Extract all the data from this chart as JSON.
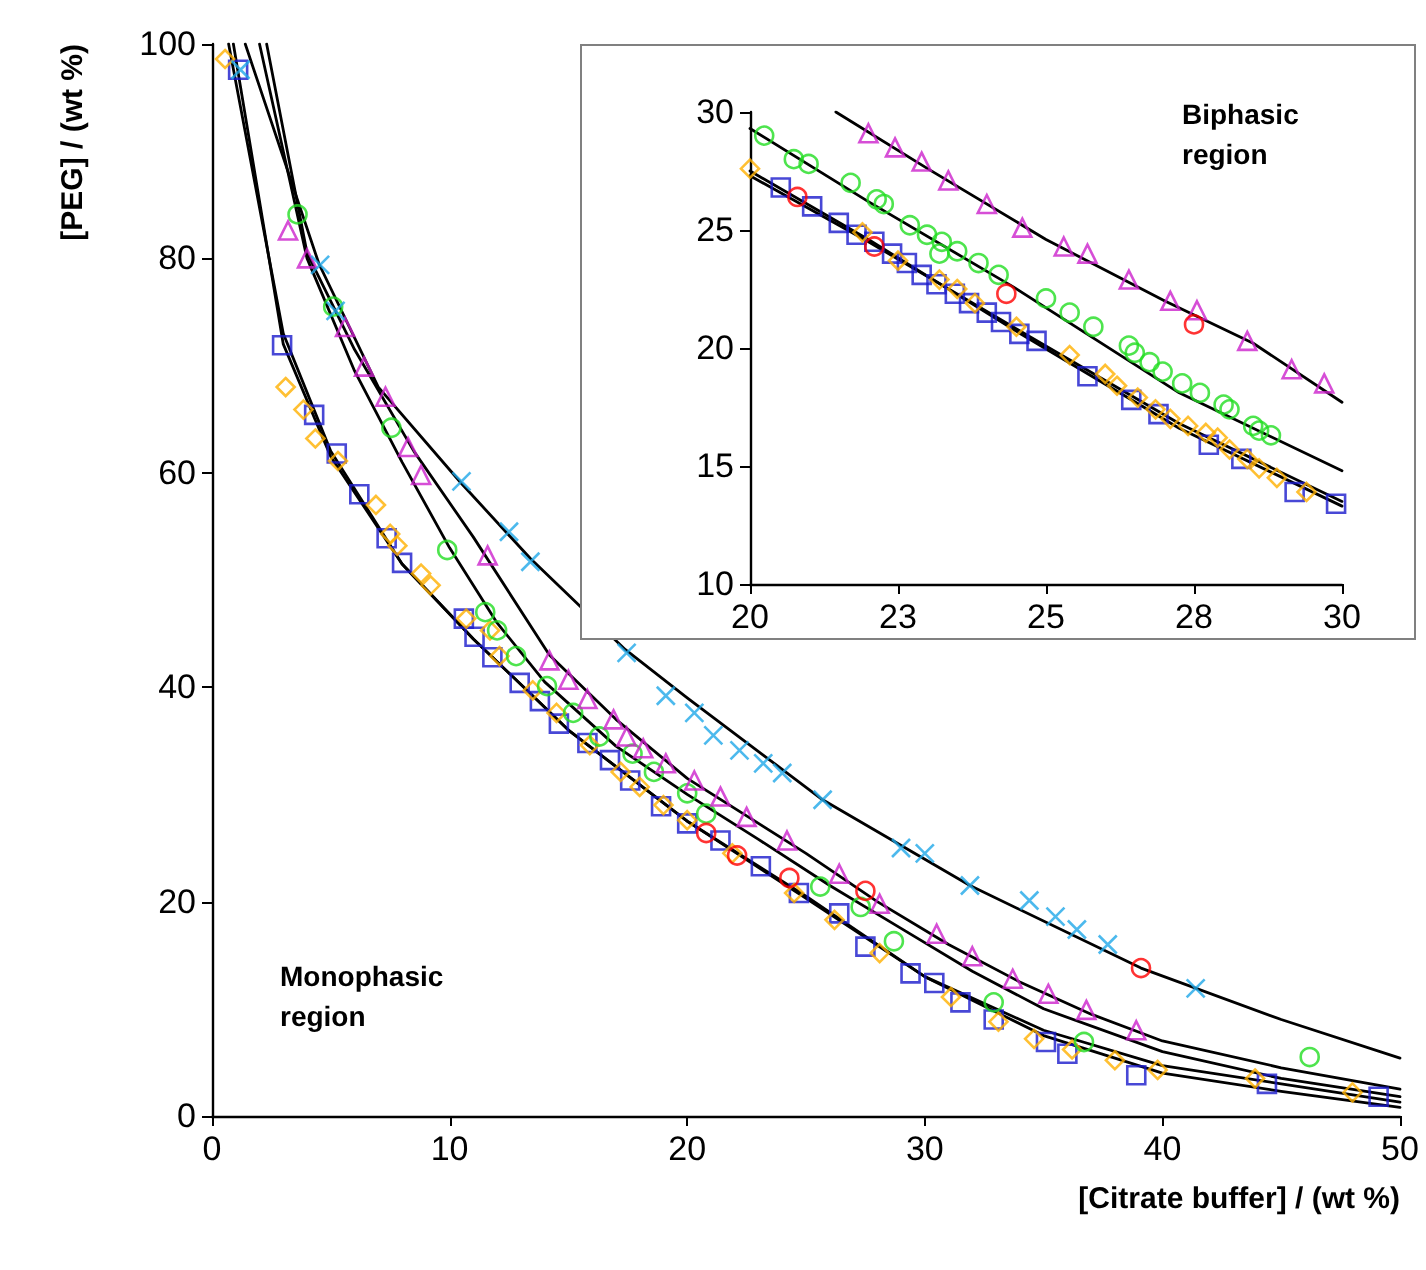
{
  "chart_data": [
    {
      "type": "scatter",
      "xlabel": "[Citrate buffer] / (wt %)",
      "ylabel": "[PEG] / (wt %)",
      "xlim": [
        0,
        50
      ],
      "ylim": [
        0,
        100
      ],
      "xticks": [
        0,
        10,
        20,
        30,
        40,
        50
      ],
      "yticks": [
        0,
        20,
        40,
        60,
        80,
        100
      ],
      "annotations": [
        "Monophasic region"
      ],
      "series": [
        {
          "type": "scatter",
          "marker": "square",
          "color": "#1a1acc",
          "x": [
            1.1,
            2.95,
            4.3,
            5.25,
            6.2,
            7.35,
            8.0,
            10.6,
            11.05,
            11.8,
            12.95,
            13.8,
            14.6,
            15.8,
            16.75,
            17.6,
            18.9,
            20.0,
            21.4,
            23.1,
            24.7,
            26.4,
            27.5,
            29.4,
            30.4,
            31.5,
            32.9,
            35.1,
            36.0,
            38.9,
            44.4,
            49.1
          ],
          "values": [
            97.6,
            71.9,
            65.4,
            61.8,
            58.0,
            53.9,
            51.6,
            46.4,
            44.7,
            42.8,
            40.4,
            38.7,
            36.6,
            34.8,
            33.2,
            31.3,
            28.9,
            27.3,
            25.7,
            23.3,
            20.8,
            18.9,
            15.8,
            13.3,
            12.4,
            10.6,
            9.0,
            6.9,
            5.8,
            3.8,
            3.0,
            1.8
          ]
        },
        {
          "type": "scatter",
          "marker": "diamond",
          "color": "#ffb000",
          "x": [
            0.55,
            3.1,
            3.85,
            4.35,
            5.3,
            6.9,
            7.5,
            7.8,
            8.8,
            9.2,
            10.7,
            11.7,
            12.1,
            13.5,
            14.5,
            15.9,
            17.2,
            18.0,
            19.0,
            20.0,
            21.9,
            24.5,
            26.2,
            28.1,
            31.1,
            33.1,
            34.6,
            36.2,
            38.0,
            39.8,
            43.9,
            48.0
          ],
          "values": [
            98.6,
            68.0,
            65.9,
            63.2,
            61.1,
            57.0,
            54.3,
            53.2,
            50.6,
            49.5,
            46.4,
            45.3,
            42.9,
            39.7,
            37.6,
            34.6,
            32.1,
            30.7,
            29.0,
            27.6,
            24.5,
            20.8,
            18.3,
            15.2,
            11.1,
            8.8,
            7.2,
            6.2,
            5.2,
            4.3,
            3.5,
            2.2
          ]
        },
        {
          "type": "scatter",
          "marker": "circle",
          "color": "#22dd22",
          "x": [
            3.6,
            5.1,
            7.55,
            9.9,
            11.5,
            12.0,
            12.8,
            14.1,
            15.2,
            16.3,
            17.7,
            18.6,
            20.0,
            20.8,
            25.6,
            27.3,
            28.7,
            32.9,
            36.7,
            46.2
          ],
          "values": [
            84.1,
            75.5,
            64.2,
            52.8,
            47.0,
            45.3,
            42.9,
            40.1,
            37.6,
            35.4,
            33.8,
            32.1,
            30.1,
            28.2,
            21.4,
            19.5,
            16.3,
            10.6,
            6.9,
            5.5
          ]
        },
        {
          "type": "scatter",
          "marker": "triangle",
          "color": "#cc22cc",
          "x": [
            3.2,
            4.0,
            5.6,
            6.4,
            7.3,
            8.25,
            8.8,
            11.6,
            14.2,
            15.0,
            15.8,
            16.9,
            17.45,
            18.15,
            19.1,
            20.3,
            21.4,
            22.5,
            24.2,
            26.4,
            28.1,
            30.5,
            32.0,
            33.7,
            35.2,
            36.8,
            38.9
          ],
          "values": [
            82.6,
            80.0,
            73.6,
            69.9,
            67.1,
            62.4,
            59.8,
            52.3,
            42.5,
            40.7,
            38.9,
            37.0,
            35.4,
            34.3,
            32.9,
            31.3,
            29.8,
            27.9,
            25.7,
            22.6,
            19.8,
            17.0,
            14.9,
            12.8,
            11.4,
            9.9,
            8.0
          ]
        },
        {
          "type": "scatter",
          "marker": "cross",
          "color": "#1fa8e8",
          "x": [
            1.2,
            4.55,
            5.2,
            10.5,
            12.5,
            13.4,
            17.45,
            19.1,
            20.3,
            21.1,
            22.2,
            23.2,
            24.0,
            25.7,
            29.0,
            30.0,
            31.9,
            34.4,
            35.5,
            36.4,
            37.7,
            41.4
          ],
          "values": [
            97.6,
            79.4,
            75.1,
            59.2,
            54.5,
            51.7,
            43.2,
            39.2,
            37.6,
            35.5,
            34.1,
            32.9,
            32.0,
            29.5,
            25.0,
            24.5,
            21.5,
            20.1,
            18.6,
            17.4,
            16.0,
            11.9
          ]
        },
        {
          "marker": "circle",
          "color": "#ff0000",
          "x": [
            20.8,
            22.1,
            24.3,
            27.5,
            39.1
          ],
          "values": [
            26.4,
            24.3,
            22.2,
            21.0,
            13.8
          ]
        },
        {
          "type": "line",
          "marker": "none",
          "color": "#000000",
          "x": [
            0.7,
            3,
            5,
            8,
            11,
            15,
            20,
            25,
            30,
            35,
            40,
            45,
            50
          ],
          "values": [
            100,
            73,
            62,
            51.5,
            44.5,
            36,
            27.5,
            20.5,
            13,
            7.5,
            4,
            2.3,
            0.8
          ]
        },
        {
          "type": "line",
          "marker": "none",
          "color": "#000000",
          "x": [
            0.9,
            3,
            5,
            8,
            11,
            15,
            20,
            25,
            30,
            35,
            40,
            45,
            50
          ],
          "values": [
            100,
            72,
            61.5,
            51.5,
            44.5,
            36,
            27.5,
            20.3,
            13,
            8,
            4.7,
            3,
            1.3
          ]
        },
        {
          "type": "line",
          "marker": "none",
          "color": "#000000",
          "x": [
            2.0,
            4,
            6,
            8,
            10,
            12,
            14,
            17,
            20,
            23,
            26,
            29,
            32,
            35,
            40,
            45,
            50
          ],
          "values": [
            100,
            80,
            69.5,
            61,
            53,
            46,
            40.5,
            34.5,
            30,
            25.8,
            21.5,
            17.5,
            13.5,
            10,
            6,
            3.5,
            1.8
          ]
        },
        {
          "type": "line",
          "marker": "none",
          "color": "#000000",
          "x": [
            2.3,
            4,
            6,
            8.5,
            11,
            14.2,
            17,
            20,
            22.5,
            25,
            28,
            31,
            34,
            37,
            40,
            45,
            50
          ],
          "values": [
            100,
            80.5,
            71.5,
            62,
            54,
            43,
            37,
            31.5,
            28,
            24.5,
            20,
            16,
            12.5,
            9.5,
            7,
            4.5,
            2.5
          ]
        },
        {
          "type": "line",
          "marker": "none",
          "color": "#000000",
          "x": [
            1.4,
            4.5,
            7,
            10.5,
            13.4,
            17.4,
            20,
            25.7,
            31.9,
            39.1,
            45,
            50
          ],
          "values": [
            100,
            79.5,
            68,
            59,
            52,
            43.5,
            39,
            29.5,
            21.5,
            13.8,
            9,
            5.4
          ]
        }
      ]
    },
    {
      "type": "scatter",
      "xlim": [
        20,
        30
      ],
      "ylim": [
        10,
        30
      ],
      "xticks": [
        20,
        {
          "value": 22.5,
          "label": "23"
        },
        25,
        {
          "value": 27.5,
          "label": "28"
        },
        30
      ],
      "yticks": [
        10,
        15,
        20,
        25,
        30
      ],
      "annotations": [
        "Biphasic region"
      ],
      "series": [
        {
          "type": "scatter",
          "marker": "square",
          "color": "#1a1acc",
          "x": [
            20.52,
            21.05,
            21.5,
            21.8,
            22.1,
            22.4,
            22.65,
            22.9,
            23.15,
            23.46,
            23.7,
            24.0,
            24.24,
            24.55,
            24.84,
            25.7,
            26.44,
            26.9,
            27.75,
            28.3,
            29.2,
            29.9
          ],
          "values": [
            26.8,
            26.0,
            25.3,
            24.8,
            24.5,
            24.0,
            23.6,
            23.1,
            22.7,
            22.3,
            21.9,
            21.5,
            21.1,
            20.6,
            20.3,
            18.8,
            17.8,
            17.2,
            15.9,
            15.3,
            13.9,
            13.4
          ]
        },
        {
          "type": "scatter",
          "marker": "diamond",
          "color": "#ffb000",
          "x": [
            20.0,
            21.9,
            22.5,
            23.2,
            23.5,
            23.8,
            24.5,
            25.4,
            26.0,
            26.2,
            26.55,
            26.85,
            27.1,
            27.4,
            27.7,
            27.9,
            28.1,
            28.4,
            28.6,
            28.9,
            29.4
          ],
          "values": [
            27.6,
            24.9,
            23.7,
            22.9,
            22.5,
            21.9,
            20.9,
            19.7,
            18.9,
            18.4,
            17.9,
            17.4,
            17.0,
            16.7,
            16.4,
            16.2,
            15.7,
            15.3,
            14.9,
            14.5,
            13.9
          ]
        },
        {
          "type": "scatter",
          "marker": "circle",
          "color": "#22dd22",
          "x": [
            20.24,
            20.74,
            20.99,
            21.7,
            22.14,
            22.26,
            22.7,
            22.99,
            23.24,
            23.2,
            23.5,
            23.86,
            24.2,
            25.0,
            25.4,
            25.8,
            26.4,
            26.5,
            26.75,
            26.97,
            27.3,
            27.6,
            28.0,
            28.1,
            28.5,
            28.6,
            28.8
          ],
          "values": [
            29.0,
            28.0,
            27.8,
            27.0,
            26.3,
            26.1,
            25.2,
            24.8,
            24.5,
            24.0,
            24.1,
            23.6,
            23.1,
            22.1,
            21.5,
            20.9,
            20.1,
            19.8,
            19.4,
            19.0,
            18.5,
            18.1,
            17.6,
            17.4,
            16.7,
            16.5,
            16.3
          ]
        },
        {
          "type": "scatter",
          "marker": "triangle",
          "color": "#cc22cc",
          "x": [
            22.0,
            22.45,
            22.9,
            23.35,
            24.0,
            24.6,
            25.3,
            25.7,
            26.4,
            27.1,
            27.55,
            28.4,
            29.15,
            29.7
          ],
          "values": [
            29.1,
            28.5,
            27.9,
            27.1,
            26.1,
            25.1,
            24.3,
            24.0,
            22.9,
            22.0,
            21.6,
            20.3,
            19.1,
            18.5
          ]
        },
        {
          "marker": "circle",
          "color": "#ff0000",
          "x": [
            20.8,
            22.1,
            24.33,
            27.5
          ],
          "values": [
            26.4,
            24.3,
            22.3,
            21.0
          ]
        },
        {
          "type": "line",
          "marker": "none",
          "color": "#000000",
          "x": [
            20,
            22,
            24.44,
            27.25,
            30
          ],
          "values": [
            27.5,
            24.6,
            20.8,
            16.6,
            13.3
          ]
        },
        {
          "type": "line",
          "marker": "none",
          "color": "#000000",
          "x": [
            20,
            22,
            24.44,
            27.25,
            30
          ],
          "values": [
            27.3,
            24.5,
            20.9,
            16.8,
            13.5
          ]
        },
        {
          "type": "line",
          "marker": "none",
          "color": "#000000",
          "x": [
            20,
            22,
            24.44,
            27.25,
            30
          ],
          "values": [
            29.3,
            26.2,
            22.6,
            18.1,
            14.8
          ]
        },
        {
          "type": "line",
          "marker": "none",
          "color": "#000000",
          "x": [
            21.45,
            23,
            25,
            27,
            28.5,
            30
          ],
          "values": [
            30,
            27.6,
            24.6,
            22.0,
            20.2,
            17.7
          ]
        }
      ]
    }
  ]
}
